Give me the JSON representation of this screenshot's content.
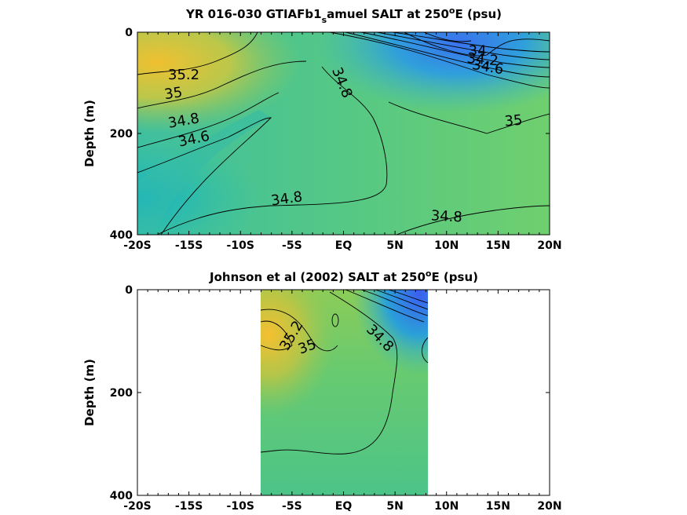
{
  "chart_data": [
    {
      "type": "heatmap",
      "title": "YR 016-030 GTIAFb1_samuel SALT at 250°E (psu)",
      "title_parts": {
        "main": "YR 016-030 GTIAFb1",
        "sub": "s",
        "rest": "amuel SALT at 250",
        "sup": "o",
        "tail": "E (psu)"
      },
      "ylabel": "Depth (m)",
      "xlim": [
        -20,
        20
      ],
      "ylim": [
        400,
        0
      ],
      "x_ticks": [
        -20,
        -15,
        -10,
        -5,
        0,
        5,
        10,
        15,
        20
      ],
      "x_tick_labels": [
        "-20S",
        "-15S",
        "-10S",
        "-5S",
        "EQ",
        "5N",
        "10N",
        "15N",
        "20N"
      ],
      "y_ticks": [
        0,
        200,
        400
      ],
      "y_tick_labels": [
        "0",
        "200",
        "400"
      ],
      "color_range": [
        34.0,
        35.4
      ],
      "contour_labels": [
        {
          "text": "35.2",
          "x": -15.5,
          "y": 85,
          "rot": 0
        },
        {
          "text": "35",
          "x": -16.5,
          "y": 122,
          "rot": -8
        },
        {
          "text": "34.8",
          "x": -15.5,
          "y": 176,
          "rot": -10
        },
        {
          "text": "34.6",
          "x": -14.5,
          "y": 212,
          "rot": -12
        },
        {
          "text": "34.8",
          "x": -0.2,
          "y": 100,
          "rot": 68
        },
        {
          "text": "34.8",
          "x": -5.5,
          "y": 330,
          "rot": -8
        },
        {
          "text": "34.8",
          "x": 10.0,
          "y": 365,
          "rot": 3
        },
        {
          "text": "35",
          "x": 16.5,
          "y": 176,
          "rot": -5
        },
        {
          "text": "34.2",
          "x": 13.5,
          "y": 55,
          "rot": 5
        },
        {
          "text": "34.6",
          "x": 14.0,
          "y": 70,
          "rot": 10
        },
        {
          "text": "34",
          "x": 13.0,
          "y": 38,
          "rot": 0
        }
      ]
    },
    {
      "type": "heatmap",
      "title": "Johnson et al (2002) SALT at 250°E (psu)",
      "title_parts": {
        "main": "Johnson et al (2002) SALT at 250",
        "sup": "o",
        "tail": "E (psu)"
      },
      "ylabel": "Depth (m)",
      "xlim": [
        -20,
        20
      ],
      "ylim": [
        400,
        0
      ],
      "data_xrange": [
        -8,
        8.3
      ],
      "x_ticks": [
        -20,
        -15,
        -10,
        -5,
        0,
        5,
        10,
        15,
        20
      ],
      "x_tick_labels": [
        "-20S",
        "-15S",
        "-10S",
        "-5S",
        "EQ",
        "5N",
        "10N",
        "15N",
        "20N"
      ],
      "y_ticks": [
        0,
        200,
        400
      ],
      "y_tick_labels": [
        "0",
        "200",
        "400"
      ],
      "color_range": [
        34.0,
        35.4
      ],
      "contour_labels": [
        {
          "text": "35.2",
          "x": -5.0,
          "y": 90,
          "rot": -60
        },
        {
          "text": "35",
          "x": -3.5,
          "y": 112,
          "rot": -20
        },
        {
          "text": "34.8",
          "x": 3.5,
          "y": 95,
          "rot": 45
        }
      ]
    }
  ]
}
